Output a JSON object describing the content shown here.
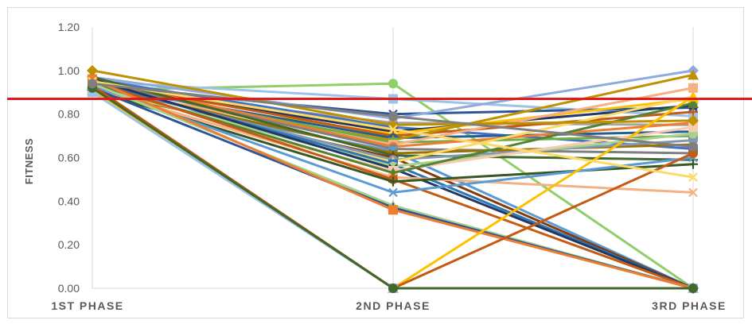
{
  "chart_data": {
    "type": "line",
    "title": "",
    "xlabel": "",
    "ylabel": "FITNESS",
    "categories": [
      "1ST PHASE",
      "2ND PHASE",
      "3RD PHASE"
    ],
    "ylim": [
      0,
      1.2
    ],
    "ytick_labels": [
      "0.00",
      "0.20",
      "0.40",
      "0.60",
      "0.80",
      "1.00",
      "1.20"
    ],
    "grid": "vertical-only",
    "legend": "none",
    "reference_line": {
      "y": 0.87,
      "color": "#e31a1c"
    },
    "series": [
      {
        "values": [
          0.91,
          0.94,
          0.0
        ],
        "color": "#8ecf6a",
        "marker": "circle"
      },
      {
        "values": [
          0.95,
          0.87,
          0.79
        ],
        "color": "#9dc3e6",
        "marker": "square"
      },
      {
        "values": [
          0.93,
          0.8,
          0.83
        ],
        "color": "#2f5597",
        "marker": "x"
      },
      {
        "values": [
          0.97,
          0.78,
          1.0
        ],
        "color": "#8faadc",
        "marker": "diamond"
      },
      {
        "values": [
          0.92,
          0.76,
          0.75
        ],
        "color": "#a5a5a5",
        "marker": "circle"
      },
      {
        "values": [
          0.96,
          0.74,
          0.64
        ],
        "color": "#4472c4",
        "marker": "square"
      },
      {
        "values": [
          0.94,
          0.72,
          0.84
        ],
        "color": "#1f3864",
        "marker": "x"
      },
      {
        "values": [
          0.9,
          0.71,
          0.87
        ],
        "color": "#ffc000",
        "marker": "triangle"
      },
      {
        "values": [
          0.95,
          0.7,
          0.81
        ],
        "color": "#c55a11",
        "marker": "plus"
      },
      {
        "values": [
          0.93,
          0.69,
          0.72
        ],
        "color": "#255e91",
        "marker": "circle"
      },
      {
        "values": [
          0.91,
          0.68,
          0.98
        ],
        "color": "#bf9000",
        "marker": "triangle"
      },
      {
        "values": [
          0.94,
          0.67,
          0.7
        ],
        "color": "#70ad47",
        "marker": "square"
      },
      {
        "values": [
          0.92,
          0.66,
          0.92
        ],
        "color": "#f4b183",
        "marker": "square"
      },
      {
        "values": [
          0.96,
          0.65,
          0.76
        ],
        "color": "#ed7d31",
        "marker": "circle"
      },
      {
        "values": [
          0.95,
          0.64,
          0.62
        ],
        "color": "#7f7f7f",
        "marker": "circle"
      },
      {
        "values": [
          0.9,
          0.63,
          0.0
        ],
        "color": "#5b9bd5",
        "marker": "square"
      },
      {
        "values": [
          0.93,
          0.62,
          0.66
        ],
        "color": "#997300",
        "marker": "x"
      },
      {
        "values": [
          0.97,
          0.61,
          0.59
        ],
        "color": "#43682b",
        "marker": "plus"
      },
      {
        "values": [
          0.91,
          0.6,
          0.0
        ],
        "color": "#843c0c",
        "marker": "diamond"
      },
      {
        "values": [
          0.94,
          0.59,
          0.68
        ],
        "color": "#8497b0",
        "marker": "circle"
      },
      {
        "values": [
          0.92,
          0.58,
          0.88
        ],
        "color": "#ffd966",
        "marker": "triangle"
      },
      {
        "values": [
          0.95,
          0.57,
          0.0
        ],
        "color": "#2e75b6",
        "marker": "square"
      },
      {
        "values": [
          0.93,
          0.56,
          0.71
        ],
        "color": "#a9d18e",
        "marker": "circle"
      },
      {
        "values": [
          0.96,
          0.55,
          0.0
        ],
        "color": "#203864",
        "marker": "x"
      },
      {
        "values": [
          0.9,
          0.54,
          0.74
        ],
        "color": "#f8cbad",
        "marker": "square"
      },
      {
        "values": [
          0.94,
          0.53,
          0.85
        ],
        "color": "#548235",
        "marker": "triangle"
      },
      {
        "values": [
          0.92,
          0.51,
          0.44
        ],
        "color": "#f4b183",
        "marker": "x"
      },
      {
        "values": [
          0.95,
          0.5,
          0.0
        ],
        "color": "#c55a11",
        "marker": "circle"
      },
      {
        "values": [
          0.91,
          0.49,
          0.57
        ],
        "color": "#385723",
        "marker": "plus"
      },
      {
        "values": [
          0.93,
          0.44,
          0.6
        ],
        "color": "#5b9bd5",
        "marker": "x"
      },
      {
        "values": [
          0.94,
          0.38,
          0.0
        ],
        "color": "#a9d18e",
        "marker": "triangle"
      },
      {
        "values": [
          0.92,
          0.37,
          0.0
        ],
        "color": "#2f5597",
        "marker": "plus"
      },
      {
        "values": [
          0.96,
          0.36,
          0.0
        ],
        "color": "#ed7d31",
        "marker": "square"
      },
      {
        "values": [
          1.0,
          0.75,
          0.77
        ],
        "color": "#bf9000",
        "marker": "diamond"
      },
      {
        "values": [
          0.91,
          0.0,
          0.88
        ],
        "color": "#ffc000",
        "marker": "triangle"
      },
      {
        "values": [
          0.93,
          0.0,
          0.62
        ],
        "color": "#c55a11",
        "marker": "circle"
      },
      {
        "values": [
          0.9,
          0.0,
          0.0
        ],
        "color": "#9dc3e6",
        "marker": "square"
      },
      {
        "values": [
          0.92,
          0.0,
          0.0
        ],
        "color": "#43682b",
        "marker": "circle"
      },
      {
        "values": [
          0.95,
          0.73,
          0.51
        ],
        "color": "#ffd966",
        "marker": "x"
      },
      {
        "values": [
          0.94,
          0.79,
          0.65
        ],
        "color": "#7f7f7f",
        "marker": "circle"
      }
    ]
  }
}
